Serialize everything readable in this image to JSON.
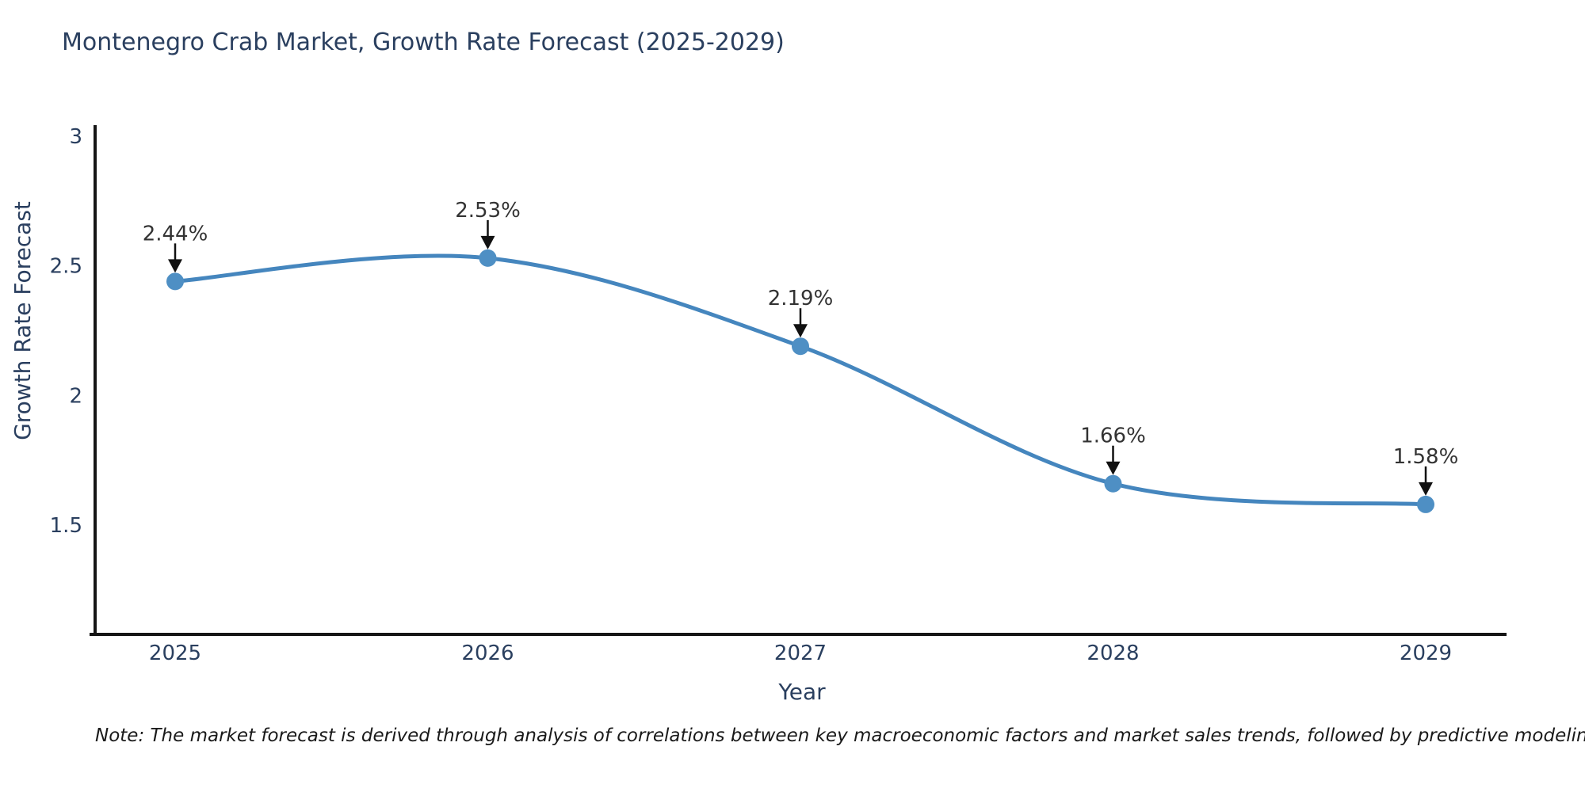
{
  "note": "Note: The market forecast is derived through analysis of correlations between key macroeconomic factors and market sales trends, followed by predictive modeling to project future sales",
  "chart_data": {
    "type": "line",
    "title": "Montenegro Crab Market, Growth Rate Forecast (2025-2029)",
    "xlabel": "Year",
    "ylabel": "Growth Rate Forecast",
    "x": [
      2025,
      2026,
      2027,
      2028,
      2029
    ],
    "xtick_labels": [
      "2025",
      "2026",
      "2027",
      "2028",
      "2029"
    ],
    "series": [
      {
        "name": "Growth Rate Forecast",
        "values": [
          2.44,
          2.53,
          2.19,
          1.66,
          1.58
        ]
      }
    ],
    "point_labels": [
      "2.44%",
      "2.53%",
      "2.19%",
      "1.66%",
      "1.58%"
    ],
    "ytick_values": [
      3,
      2.5,
      2,
      1.5
    ],
    "ytick_labels": [
      "3",
      "2.5",
      "2",
      "1.5"
    ],
    "ylim": [
      1.08,
      3.14
    ],
    "line_shape": "spline",
    "grid": false,
    "legend": "none",
    "colors": {
      "line": "#4586be",
      "marker": "#4e8fc4",
      "axis": "#151515",
      "tick_label": "#2a3f5f",
      "axis_title": "#2a3f5f",
      "title": "#2a3f5f",
      "annotation_text": "#333333",
      "annotation_arrow": "#111111"
    }
  }
}
